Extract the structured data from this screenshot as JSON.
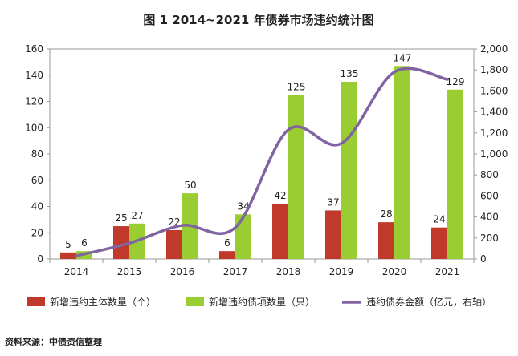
{
  "chart_data": {
    "type": "bar",
    "title": "图 1 2014~2021 年债券市场违约统计图",
    "categories": [
      "2014",
      "2015",
      "2016",
      "2017",
      "2018",
      "2019",
      "2020",
      "2021"
    ],
    "series": [
      {
        "name": "新增违约主体数量（个）",
        "type": "bar",
        "axis": "left",
        "color": "#c0392b",
        "values": [
          5,
          25,
          22,
          6,
          42,
          37,
          28,
          24
        ]
      },
      {
        "name": "新增违约债项数量（只）",
        "type": "bar",
        "axis": "left",
        "color": "#9acd32",
        "values": [
          6,
          27,
          50,
          34,
          125,
          135,
          147,
          129
        ]
      },
      {
        "name": "违约债券金额（亿元，右轴）",
        "type": "line",
        "axis": "right",
        "color": "#8064a2",
        "values": [
          30,
          150,
          320,
          300,
          1230,
          1100,
          1780,
          1710
        ]
      }
    ],
    "y_left": {
      "lim": [
        0,
        160
      ],
      "ticks": [
        "0",
        "20",
        "40",
        "60",
        "80",
        "100",
        "120",
        "140",
        "160"
      ]
    },
    "y_right": {
      "lim": [
        0,
        2000
      ],
      "ticks": [
        "0",
        "200",
        "400",
        "600",
        "800",
        "1,000",
        "1,200",
        "1,400",
        "1,600",
        "1,800",
        "2,000"
      ]
    },
    "legend_position": "bottom",
    "grid": false
  },
  "source": "资料来源：中债资信整理"
}
